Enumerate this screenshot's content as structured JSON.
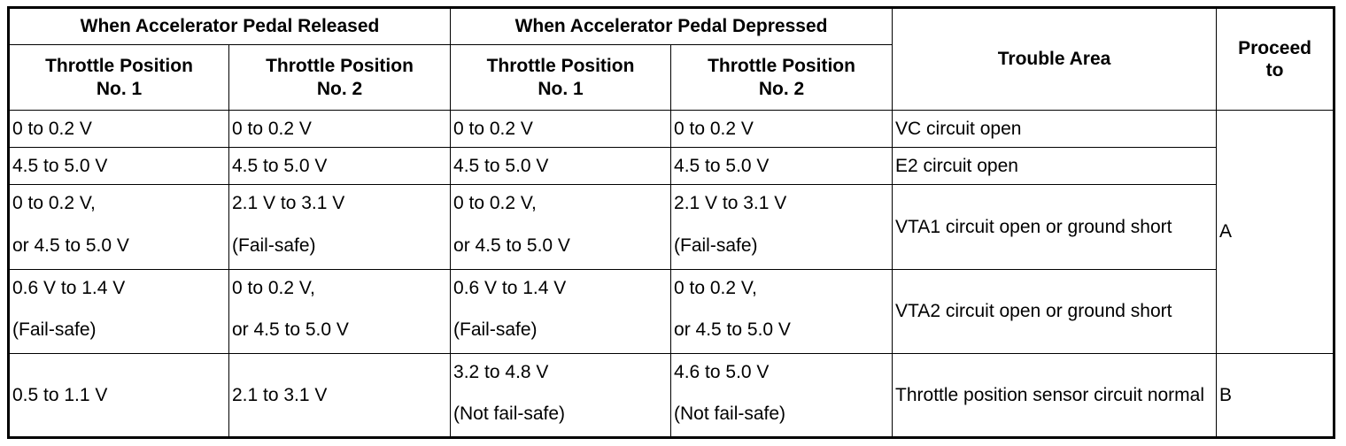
{
  "headers": {
    "released": "When Accelerator Pedal Released",
    "depressed": "When Accelerator Pedal Depressed",
    "tp1_line1": "Throttle Position",
    "tp1_line2": "No. 1",
    "tp2_line1": "Throttle Position",
    "tp2_line2": "No. 2",
    "trouble_area": "Trouble Area",
    "proceed_line1": "Proceed",
    "proceed_line2": "to"
  },
  "rows": [
    {
      "rel_tp1": "0 to 0.2 V",
      "rel_tp2": "0 to 0.2 V",
      "dep_tp1": "0 to 0.2 V",
      "dep_tp2": "0 to 0.2 V",
      "trouble": "VC circuit open"
    },
    {
      "rel_tp1": "4.5 to 5.0 V",
      "rel_tp2": "4.5 to 5.0 V",
      "dep_tp1": "4.5 to 5.0 V",
      "dep_tp2": "4.5 to 5.0 V",
      "trouble": "E2 circuit open"
    },
    {
      "rel_tp1_a": "0 to 0.2 V,",
      "rel_tp1_b": "or 4.5 to 5.0 V",
      "rel_tp2_a": "2.1 V to 3.1 V",
      "rel_tp2_b": "(Fail-safe)",
      "dep_tp1_a": "0 to 0.2 V,",
      "dep_tp1_b": "or 4.5 to 5.0 V",
      "dep_tp2_a": "2.1 V to 3.1 V",
      "dep_tp2_b": "(Fail-safe)",
      "trouble": "VTA1 circuit open or ground short"
    },
    {
      "rel_tp1_a": "0.6 V to 1.4 V",
      "rel_tp1_b": "(Fail-safe)",
      "rel_tp2_a": "0 to 0.2 V,",
      "rel_tp2_b": "or 4.5 to 5.0 V",
      "dep_tp1_a": "0.6 V to 1.4 V",
      "dep_tp1_b": "(Fail-safe)",
      "dep_tp2_a": "0 to 0.2 V,",
      "dep_tp2_b": "or 4.5 to 5.0 V",
      "trouble": "VTA2 circuit open or ground short"
    },
    {
      "rel_tp1": "0.5 to 1.1 V",
      "rel_tp2": "2.1 to 3.1 V",
      "dep_tp1_a": "3.2 to 4.8 V",
      "dep_tp1_b": "(Not fail-safe)",
      "dep_tp2_a": "4.6 to 5.0 V",
      "dep_tp2_b": "(Not fail-safe)",
      "trouble": "Throttle position sensor circuit normal"
    }
  ],
  "proceed": {
    "a": "A",
    "b": "B"
  }
}
